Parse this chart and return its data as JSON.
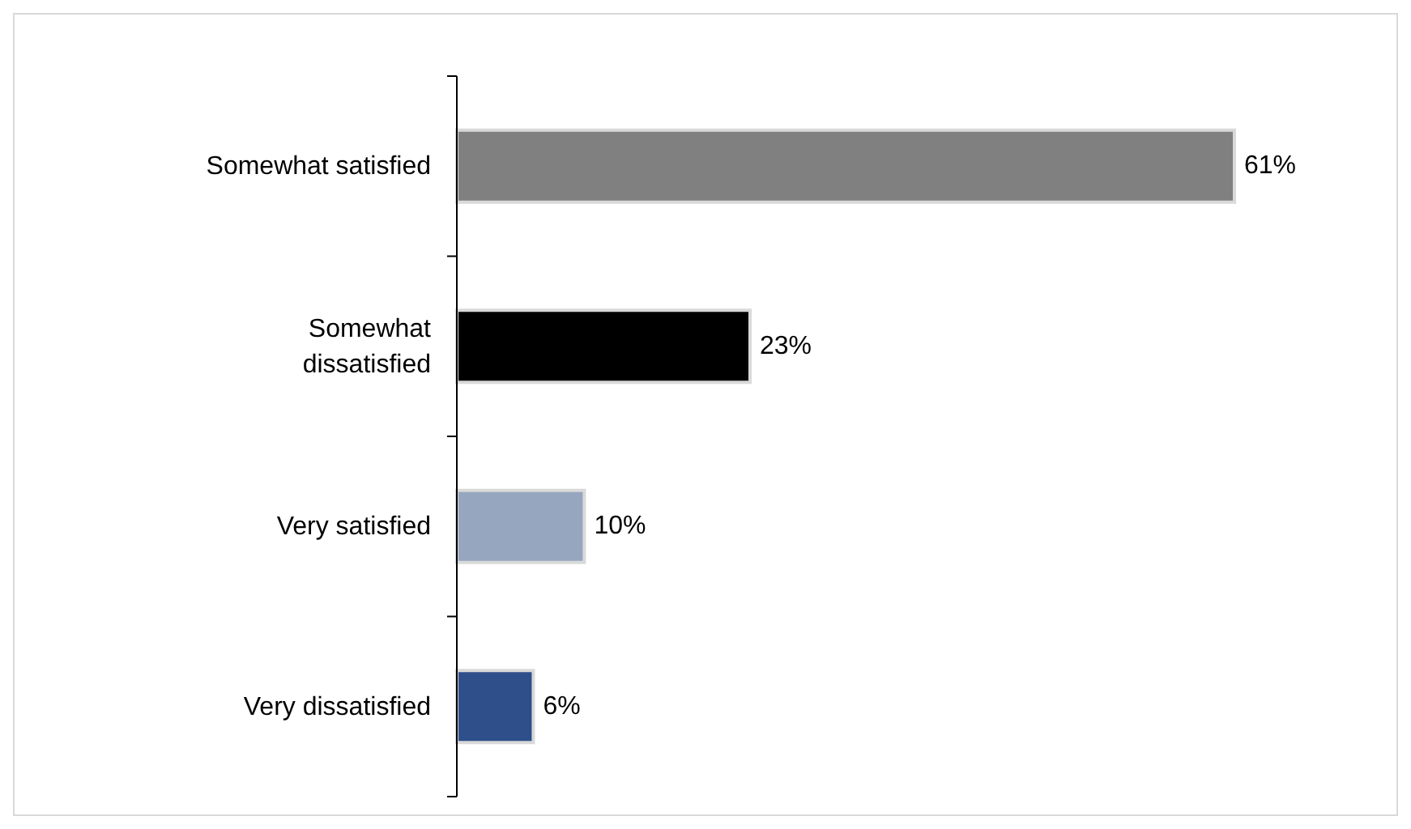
{
  "chart_data": {
    "type": "bar",
    "orientation": "horizontal",
    "categories": [
      "Somewhat satisfied",
      "Somewhat dissatisfied",
      "Very satisfied",
      "Very dissatisfied"
    ],
    "values": [
      61,
      23,
      10,
      6
    ],
    "colors": [
      "#808080",
      "#000000",
      "#97a6bf",
      "#2e4f8a"
    ],
    "value_labels": [
      "61%",
      "23%",
      "10%",
      "6%"
    ]
  }
}
